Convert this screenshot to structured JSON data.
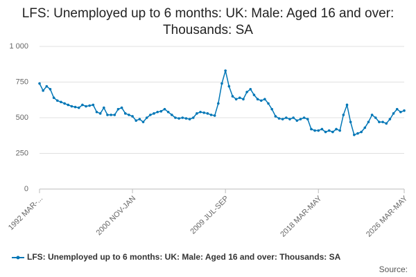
{
  "chart_data": {
    "type": "line",
    "title": "LFS: Unemployed up to 6 months: UK: Male: Aged 16 and over: Thousands: SA",
    "categories": [
      "1992 MAR-...",
      null,
      null,
      null,
      null,
      null,
      null,
      null,
      null,
      null,
      null,
      null,
      null,
      null,
      null,
      null,
      null,
      null,
      null,
      null,
      null,
      null,
      null,
      null,
      null,
      null,
      "2000 NOV-JAN",
      null,
      null,
      null,
      null,
      null,
      null,
      null,
      null,
      null,
      null,
      null,
      null,
      null,
      null,
      null,
      null,
      null,
      null,
      null,
      null,
      null,
      null,
      null,
      null,
      null,
      "2009 JUL-SEP",
      null,
      null,
      null,
      null,
      null,
      null,
      null,
      null,
      null,
      null,
      null,
      null,
      null,
      null,
      null,
      null,
      null,
      null,
      null,
      null,
      null,
      null,
      null,
      null,
      null,
      "2018 MAR-MAY",
      null,
      null,
      null,
      null,
      null,
      null,
      null,
      null,
      null,
      null,
      null,
      null,
      null,
      null,
      null,
      null,
      null,
      null,
      null,
      null,
      null,
      null,
      null,
      "2026 MAR-MAY"
    ],
    "series": [
      {
        "name": "LFS: Unemployed up to 6 months: UK: Male: Aged 16 and over: Thousands: SA",
        "color": "#0076b6",
        "values": [
          740,
          690,
          720,
          700,
          640,
          620,
          610,
          600,
          590,
          580,
          575,
          570,
          590,
          580,
          585,
          590,
          540,
          530,
          570,
          520,
          520,
          520,
          560,
          570,
          530,
          520,
          510,
          480,
          490,
          470,
          500,
          520,
          530,
          540,
          545,
          560,
          540,
          520,
          500,
          495,
          500,
          495,
          490,
          500,
          530,
          540,
          535,
          530,
          520,
          515,
          600,
          740,
          830,
          720,
          650,
          630,
          640,
          630,
          680,
          700,
          660,
          630,
          620,
          630,
          600,
          560,
          510,
          495,
          490,
          500,
          490,
          500,
          480,
          490,
          500,
          490,
          420,
          410,
          410,
          420,
          400,
          410,
          400,
          420,
          410,
          520,
          590,
          470,
          380,
          390,
          400,
          430,
          470,
          520,
          500,
          470,
          470,
          460,
          490,
          530,
          560,
          540,
          550
        ]
      }
    ],
    "ylim": [
      0,
      1000
    ],
    "yticks": [
      0,
      250,
      500,
      750,
      {
        "value": 1000,
        "label": "1 000"
      }
    ],
    "grid": true,
    "source": "Source:"
  }
}
